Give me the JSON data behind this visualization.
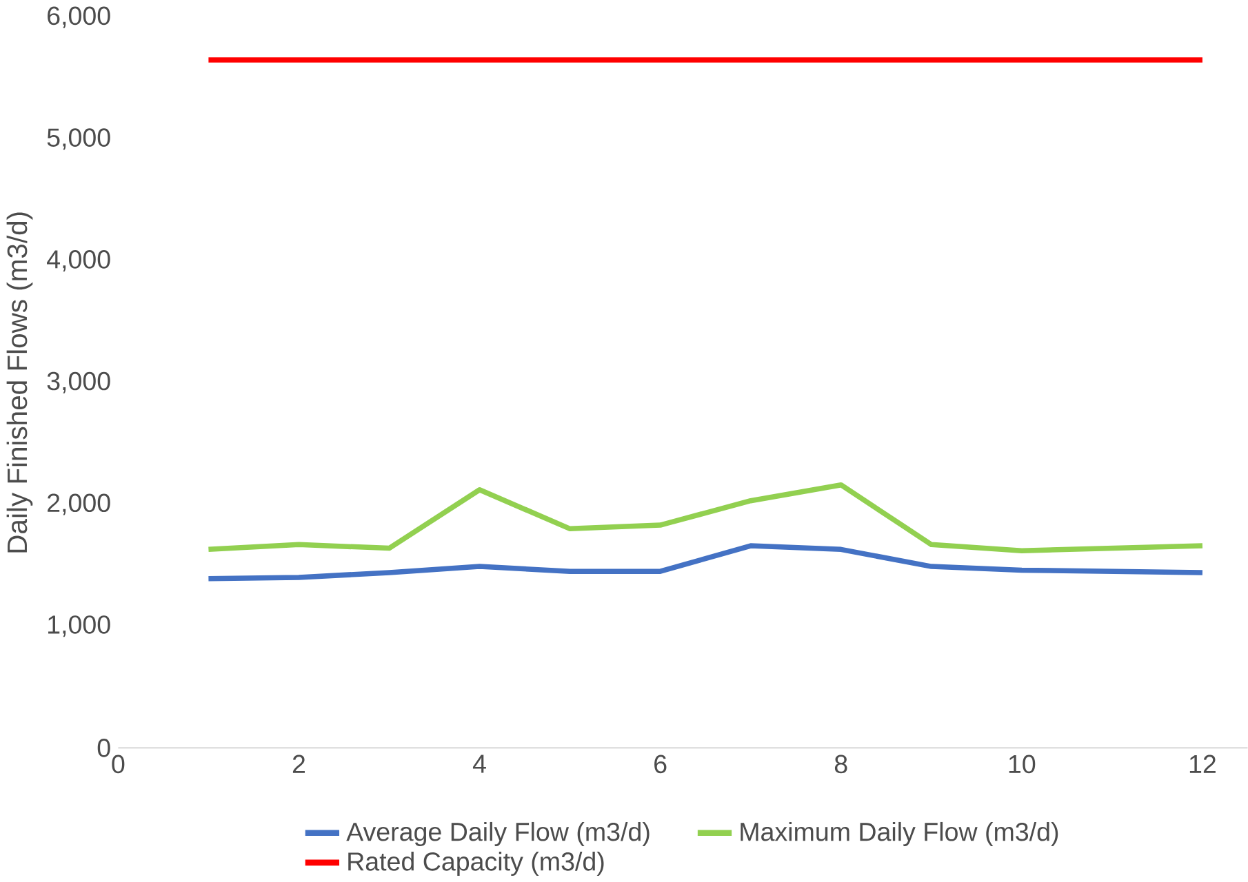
{
  "chart_data": {
    "type": "line",
    "ylabel": "Daily Finished Flows (m3/d)",
    "x": [
      1,
      2,
      3,
      4,
      5,
      6,
      7,
      8,
      9,
      10,
      11,
      12
    ],
    "series": [
      {
        "name": "Average Daily Flow (m3/d)",
        "color": "#4472c4",
        "values": [
          1390,
          1400,
          1440,
          1490,
          1450,
          1450,
          1660,
          1630,
          1490,
          1460,
          1450,
          1440
        ]
      },
      {
        "name": "Maximum Daily Flow (m3/d)",
        "color": "#92d050",
        "values": [
          1630,
          1670,
          1640,
          2120,
          1800,
          1830,
          2030,
          2160,
          1670,
          1620,
          1640,
          1660
        ]
      },
      {
        "name": "Rated Capacity (m3/d)",
        "color": "#ff0000",
        "values": [
          5650,
          5650,
          5650,
          5650,
          5650,
          5650,
          5650,
          5650,
          5650,
          5650,
          5650,
          5650
        ]
      }
    ],
    "xlim": [
      0,
      12.5
    ],
    "xticks": [
      0,
      2,
      4,
      6,
      8,
      10,
      12
    ],
    "ylim": [
      0,
      6000
    ],
    "yticks": [
      {
        "value": 0,
        "label": "0"
      },
      {
        "value": 1000,
        "label": "1,000"
      },
      {
        "value": 2000,
        "label": "2,000"
      },
      {
        "value": 3000,
        "label": "3,000"
      },
      {
        "value": 4000,
        "label": "4,000"
      },
      {
        "value": 5000,
        "label": "5,000"
      },
      {
        "value": 6000,
        "label": "6,000"
      }
    ],
    "grid": false,
    "legend": "bottom",
    "marker": "none",
    "line_style": "solid"
  }
}
